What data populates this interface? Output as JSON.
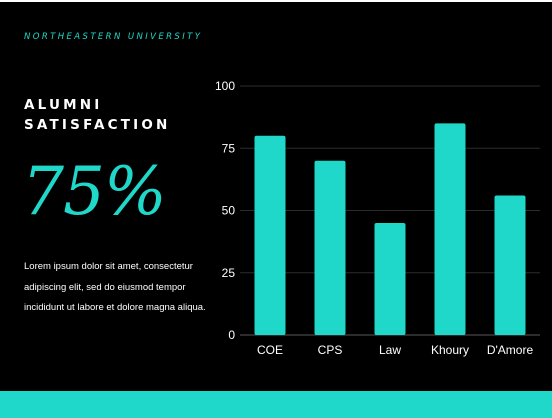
{
  "org": "NORTHEASTERN UNIVERSITY",
  "title": "ALUMNI SATISFACTION",
  "headline_value": "75%",
  "description": "Lorem ipsum dolor sit amet, consectetur adipiscing elit, sed do eiusmod tempor incididunt ut labore et dolore magna aliqua.",
  "colors": {
    "accent": "#1fd8c9",
    "background": "#000000",
    "text": "#ffffff"
  },
  "chart_data": {
    "type": "bar",
    "categories": [
      "COE",
      "CPS",
      "Law",
      "Khoury",
      "D'Amore"
    ],
    "values": [
      80,
      70,
      45,
      85,
      56
    ],
    "ylim": [
      0,
      100
    ],
    "yticks": [
      0,
      25,
      50,
      75,
      100
    ],
    "grid": true,
    "bar_color": "#1fd8c9"
  }
}
